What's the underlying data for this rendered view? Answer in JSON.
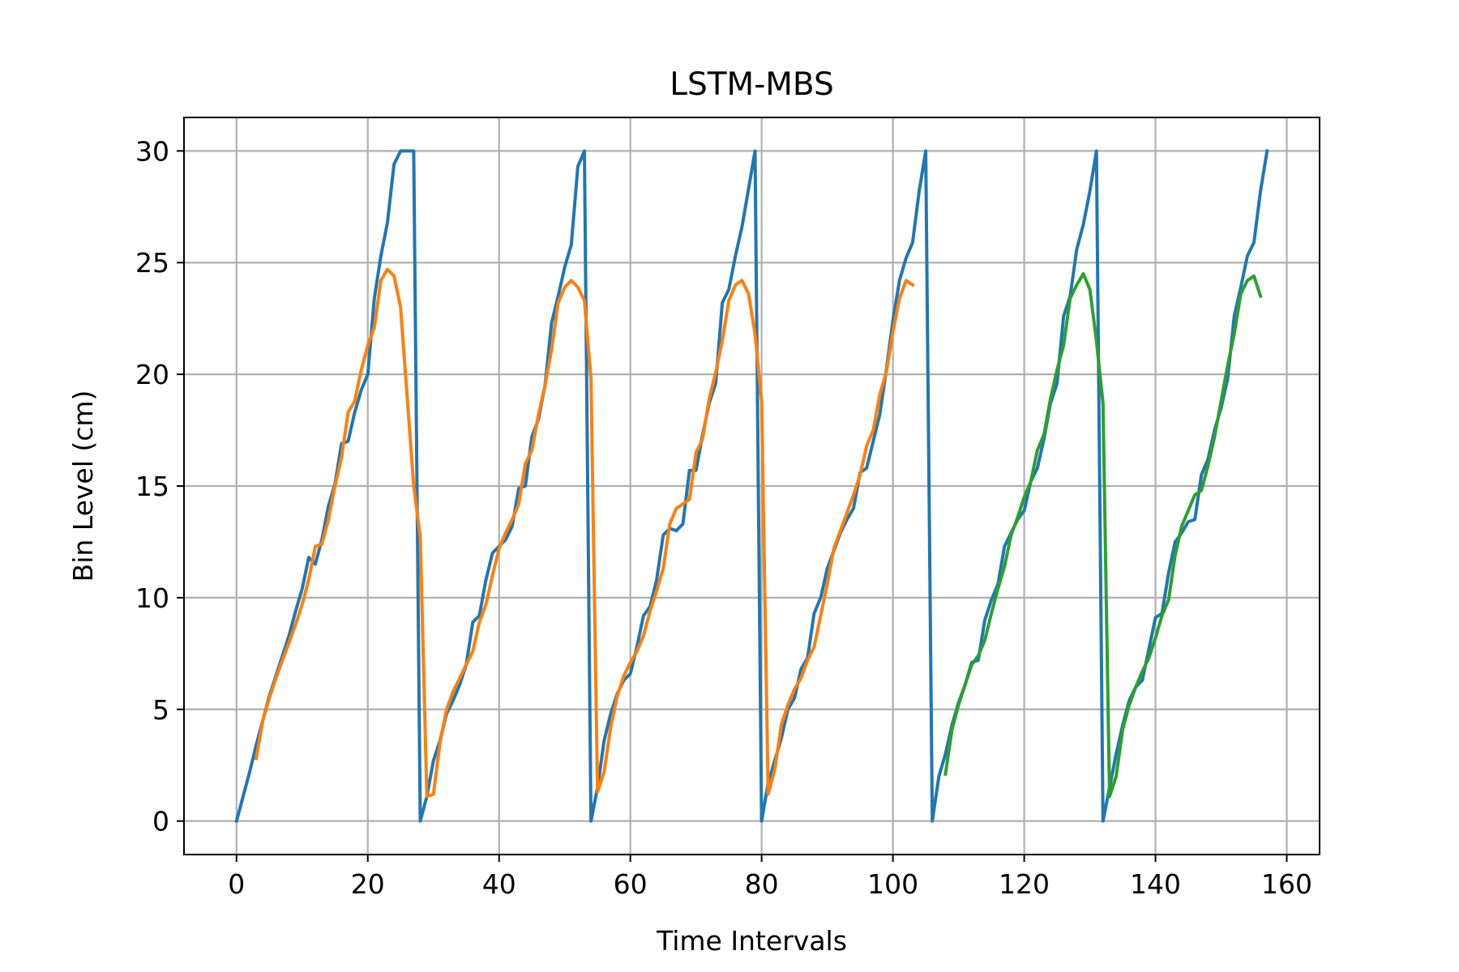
{
  "chart_data": {
    "type": "line",
    "title": "LSTM-MBS",
    "xlabel": "Time Intervals",
    "ylabel": "Bin Level (cm)",
    "xlim": [
      -8,
      165
    ],
    "ylim": [
      -1.5,
      31.5
    ],
    "xticks": [
      0,
      20,
      40,
      60,
      80,
      100,
      120,
      140,
      160
    ],
    "yticks": [
      0,
      5,
      10,
      15,
      20,
      25,
      30
    ],
    "grid": true,
    "colors": [
      "#1f77b4",
      "#ff7f0e",
      "#2ca02c"
    ],
    "series": [
      {
        "color": "#1f77b4",
        "points": [
          [
            0,
            0
          ],
          [
            1,
            1.1
          ],
          [
            2,
            2.2
          ],
          [
            3,
            3.4
          ],
          [
            4,
            4.5
          ],
          [
            5,
            5.6
          ],
          [
            6,
            6.5
          ],
          [
            7,
            7.4
          ],
          [
            8,
            8.3
          ],
          [
            9,
            9.4
          ],
          [
            10,
            10.4
          ],
          [
            11,
            11.8
          ],
          [
            12,
            11.5
          ],
          [
            13,
            12.6
          ],
          [
            14,
            14.1
          ],
          [
            15,
            15.1
          ],
          [
            16,
            16.9
          ],
          [
            17,
            17.0
          ],
          [
            18,
            18.3
          ],
          [
            19,
            19.3
          ],
          [
            20,
            20.0
          ],
          [
            21,
            23.4
          ],
          [
            22,
            25.3
          ],
          [
            23,
            26.8
          ],
          [
            24,
            29.4
          ],
          [
            25,
            30
          ],
          [
            26,
            30
          ],
          [
            27,
            30
          ],
          [
            28,
            0
          ],
          [
            29,
            1.1
          ],
          [
            30,
            2.7
          ],
          [
            31,
            3.6
          ],
          [
            32,
            4.8
          ],
          [
            33,
            5.4
          ],
          [
            34,
            6.1
          ],
          [
            35,
            7.0
          ],
          [
            36,
            8.9
          ],
          [
            37,
            9.2
          ],
          [
            38,
            10.8
          ],
          [
            39,
            12.0
          ],
          [
            40,
            12.3
          ],
          [
            41,
            12.6
          ],
          [
            42,
            13.2
          ],
          [
            43,
            14.9
          ],
          [
            44,
            15.0
          ],
          [
            45,
            17.2
          ],
          [
            46,
            18.0
          ],
          [
            47,
            19.5
          ],
          [
            48,
            22.3
          ],
          [
            49,
            23.5
          ],
          [
            50,
            24.8
          ],
          [
            51,
            25.8
          ],
          [
            52,
            29.3
          ],
          [
            53,
            30
          ],
          [
            54,
            0
          ],
          [
            55,
            1.5
          ],
          [
            56,
            3.6
          ],
          [
            57,
            4.8
          ],
          [
            58,
            5.7
          ],
          [
            59,
            6.3
          ],
          [
            60,
            6.6
          ],
          [
            61,
            7.8
          ],
          [
            62,
            9.2
          ],
          [
            63,
            9.6
          ],
          [
            64,
            10.8
          ],
          [
            65,
            12.8
          ],
          [
            66,
            13.1
          ],
          [
            67,
            13.0
          ],
          [
            68,
            13.3
          ],
          [
            69,
            15.7
          ],
          [
            70,
            15.7
          ],
          [
            71,
            17.3
          ],
          [
            72,
            18.7
          ],
          [
            73,
            19.6
          ],
          [
            74,
            23.2
          ],
          [
            75,
            23.8
          ],
          [
            76,
            25.3
          ],
          [
            77,
            26.6
          ],
          [
            78,
            28.3
          ],
          [
            79,
            30
          ],
          [
            80,
            0
          ],
          [
            81,
            1.7
          ],
          [
            82,
            2.7
          ],
          [
            83,
            3.7
          ],
          [
            84,
            5.0
          ],
          [
            85,
            5.5
          ],
          [
            86,
            6.8
          ],
          [
            87,
            7.3
          ],
          [
            88,
            9.3
          ],
          [
            89,
            10.0
          ],
          [
            90,
            11.3
          ],
          [
            91,
            12.1
          ],
          [
            92,
            12.9
          ],
          [
            93,
            13.5
          ],
          [
            94,
            14.0
          ],
          [
            95,
            15.6
          ],
          [
            96,
            15.8
          ],
          [
            97,
            17.0
          ],
          [
            98,
            18.2
          ],
          [
            99,
            20.2
          ],
          [
            100,
            22.4
          ],
          [
            101,
            24.2
          ],
          [
            102,
            25.2
          ],
          [
            103,
            25.9
          ],
          [
            104,
            28.2
          ],
          [
            105,
            30
          ],
          [
            106,
            0
          ],
          [
            107,
            2.0
          ],
          [
            108,
            3.0
          ],
          [
            109,
            4.3
          ],
          [
            110,
            5.3
          ],
          [
            111,
            6.1
          ],
          [
            112,
            7.1
          ],
          [
            113,
            7.2
          ],
          [
            114,
            9.0
          ],
          [
            115,
            9.9
          ],
          [
            116,
            10.6
          ],
          [
            117,
            12.3
          ],
          [
            118,
            12.9
          ],
          [
            119,
            13.5
          ],
          [
            120,
            13.9
          ],
          [
            121,
            15.2
          ],
          [
            122,
            15.8
          ],
          [
            123,
            17.1
          ],
          [
            124,
            18.7
          ],
          [
            125,
            19.6
          ],
          [
            126,
            22.6
          ],
          [
            127,
            23.5
          ],
          [
            128,
            25.6
          ],
          [
            129,
            26.7
          ],
          [
            130,
            28.2
          ],
          [
            131,
            30
          ],
          [
            132,
            0
          ],
          [
            133,
            1.5
          ],
          [
            134,
            3.0
          ],
          [
            135,
            4.3
          ],
          [
            136,
            5.4
          ],
          [
            137,
            6.0
          ],
          [
            138,
            6.3
          ],
          [
            139,
            7.7
          ],
          [
            140,
            9.1
          ],
          [
            141,
            9.3
          ],
          [
            142,
            11.1
          ],
          [
            143,
            12.5
          ],
          [
            144,
            12.9
          ],
          [
            145,
            13.4
          ],
          [
            146,
            13.5
          ],
          [
            147,
            15.5
          ],
          [
            148,
            16.2
          ],
          [
            149,
            17.5
          ],
          [
            150,
            18.5
          ],
          [
            151,
            19.8
          ],
          [
            152,
            22.6
          ],
          [
            153,
            23.9
          ],
          [
            154,
            25.3
          ],
          [
            155,
            25.9
          ],
          [
            156,
            28.2
          ],
          [
            157,
            30
          ]
        ]
      },
      {
        "color": "#ff7f0e",
        "points": [
          [
            3,
            2.8
          ],
          [
            4,
            4.5
          ],
          [
            5,
            5.5
          ],
          [
            6,
            6.4
          ],
          [
            7,
            7.2
          ],
          [
            8,
            8.0
          ],
          [
            9,
            8.8
          ],
          [
            10,
            9.7
          ],
          [
            11,
            10.8
          ],
          [
            12,
            12.3
          ],
          [
            13,
            12.4
          ],
          [
            14,
            13.5
          ],
          [
            15,
            15.0
          ],
          [
            16,
            16.3
          ],
          [
            17,
            18.3
          ],
          [
            18,
            18.8
          ],
          [
            19,
            20.2
          ],
          [
            20,
            21.3
          ],
          [
            21,
            22.1
          ],
          [
            22,
            24.2
          ],
          [
            23,
            24.7
          ],
          [
            24,
            24.4
          ],
          [
            25,
            23.0
          ],
          [
            26,
            19.0
          ],
          [
            27,
            15.0
          ],
          [
            28,
            12.7
          ],
          [
            29,
            1.1
          ],
          [
            30,
            1.2
          ],
          [
            31,
            3.5
          ],
          [
            32,
            5.0
          ],
          [
            33,
            5.8
          ],
          [
            34,
            6.4
          ],
          [
            35,
            7.0
          ],
          [
            36,
            7.6
          ],
          [
            37,
            8.9
          ],
          [
            38,
            9.7
          ],
          [
            39,
            11.0
          ],
          [
            40,
            12.2
          ],
          [
            41,
            12.9
          ],
          [
            42,
            13.5
          ],
          [
            43,
            14.2
          ],
          [
            44,
            16.0
          ],
          [
            45,
            16.6
          ],
          [
            46,
            18.2
          ],
          [
            47,
            19.5
          ],
          [
            48,
            21.1
          ],
          [
            49,
            23.2
          ],
          [
            50,
            23.9
          ],
          [
            51,
            24.2
          ],
          [
            52,
            23.9
          ],
          [
            53,
            23.3
          ],
          [
            54,
            19.8
          ],
          [
            55,
            1.3
          ],
          [
            56,
            2.2
          ],
          [
            57,
            4.2
          ],
          [
            58,
            5.6
          ],
          [
            59,
            6.5
          ],
          [
            60,
            7.1
          ],
          [
            61,
            7.6
          ],
          [
            62,
            8.3
          ],
          [
            63,
            9.4
          ],
          [
            64,
            10.3
          ],
          [
            65,
            11.3
          ],
          [
            66,
            13.3
          ],
          [
            67,
            14.0
          ],
          [
            68,
            14.2
          ],
          [
            69,
            14.4
          ],
          [
            70,
            16.5
          ],
          [
            71,
            17.1
          ],
          [
            72,
            18.9
          ],
          [
            73,
            20.1
          ],
          [
            74,
            21.5
          ],
          [
            75,
            23.3
          ],
          [
            76,
            24.0
          ],
          [
            77,
            24.2
          ],
          [
            78,
            23.6
          ],
          [
            79,
            21.8
          ],
          [
            80,
            18.8
          ],
          [
            81,
            1.2
          ],
          [
            82,
            2.3
          ],
          [
            83,
            4.3
          ],
          [
            84,
            5.2
          ],
          [
            85,
            5.9
          ],
          [
            86,
            6.4
          ],
          [
            87,
            7.2
          ],
          [
            88,
            7.8
          ],
          [
            89,
            9.2
          ],
          [
            90,
            10.6
          ],
          [
            91,
            12.2
          ],
          [
            92,
            13.0
          ],
          [
            93,
            13.8
          ],
          [
            94,
            14.6
          ],
          [
            95,
            15.5
          ],
          [
            96,
            16.8
          ],
          [
            97,
            17.5
          ],
          [
            98,
            19.1
          ],
          [
            99,
            20.1
          ],
          [
            100,
            21.9
          ],
          [
            101,
            23.4
          ],
          [
            102,
            24.2
          ],
          [
            103,
            24.0
          ]
        ]
      },
      {
        "color": "#2ca02c",
        "points": [
          [
            108,
            2.1
          ],
          [
            109,
            4.1
          ],
          [
            110,
            5.2
          ],
          [
            111,
            6.1
          ],
          [
            112,
            7.0
          ],
          [
            113,
            7.4
          ],
          [
            114,
            8.1
          ],
          [
            115,
            9.3
          ],
          [
            116,
            10.4
          ],
          [
            117,
            11.4
          ],
          [
            118,
            12.8
          ],
          [
            119,
            13.6
          ],
          [
            120,
            14.5
          ],
          [
            121,
            15.2
          ],
          [
            122,
            16.6
          ],
          [
            123,
            17.3
          ],
          [
            124,
            18.9
          ],
          [
            125,
            20.2
          ],
          [
            126,
            21.3
          ],
          [
            127,
            23.4
          ],
          [
            128,
            24.0
          ],
          [
            129,
            24.5
          ],
          [
            130,
            23.8
          ],
          [
            131,
            21.5
          ],
          [
            132,
            18.7
          ],
          [
            133,
            1.1
          ],
          [
            134,
            2.0
          ],
          [
            135,
            4.1
          ],
          [
            136,
            5.2
          ],
          [
            137,
            6.0
          ],
          [
            138,
            6.7
          ],
          [
            139,
            7.3
          ],
          [
            140,
            8.2
          ],
          [
            141,
            9.2
          ],
          [
            142,
            9.9
          ],
          [
            143,
            11.9
          ],
          [
            144,
            13.2
          ],
          [
            145,
            13.9
          ],
          [
            146,
            14.6
          ],
          [
            147,
            14.8
          ],
          [
            148,
            15.9
          ],
          [
            149,
            17.2
          ],
          [
            150,
            18.8
          ],
          [
            151,
            20.4
          ],
          [
            152,
            21.8
          ],
          [
            153,
            23.6
          ],
          [
            154,
            24.2
          ],
          [
            155,
            24.4
          ],
          [
            156,
            23.5
          ]
        ]
      }
    ]
  }
}
